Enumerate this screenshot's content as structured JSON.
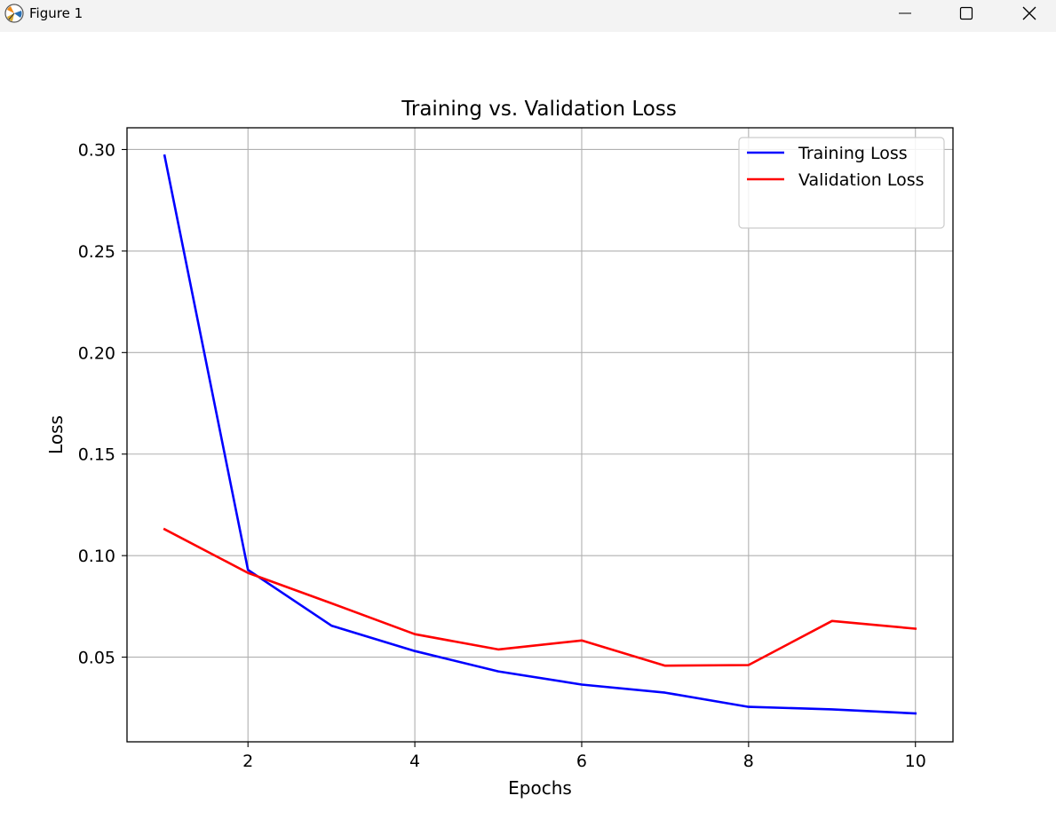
{
  "window": {
    "title": "Figure 1",
    "app_icon": "matplotlib-icon",
    "controls": {
      "minimize": "minimize-icon",
      "maximize": "maximize-icon",
      "close": "close-icon"
    }
  },
  "chart_data": {
    "type": "line",
    "title": "Training vs. Validation Loss",
    "xlabel": "Epochs",
    "ylabel": "Loss",
    "x": [
      1,
      2,
      3,
      4,
      5,
      6,
      7,
      8,
      9,
      10
    ],
    "series": [
      {
        "name": "Training Loss",
        "color": "#0000ff",
        "values": [
          0.297,
          0.093,
          0.0655,
          0.053,
          0.043,
          0.0365,
          0.0325,
          0.0255,
          0.0243,
          0.0223
        ]
      },
      {
        "name": "Validation Loss",
        "color": "#ff0000",
        "values": [
          0.113,
          0.0915,
          0.0765,
          0.0613,
          0.0538,
          0.0582,
          0.0458,
          0.0461,
          0.0678,
          0.064
        ]
      }
    ],
    "xlim": [
      0.55,
      10.45
    ],
    "ylim": [
      0.0083,
      0.3107
    ],
    "xticks": [
      2,
      4,
      6,
      8,
      10
    ],
    "xtick_labels": [
      "2",
      "4",
      "6",
      "8",
      "10"
    ],
    "yticks": [
      0.05,
      0.1,
      0.15,
      0.2,
      0.25,
      0.3
    ],
    "ytick_labels": [
      "0.05",
      "0.10",
      "0.15",
      "0.20",
      "0.25",
      "0.30"
    ],
    "grid": true,
    "legend_position": "top-right"
  }
}
